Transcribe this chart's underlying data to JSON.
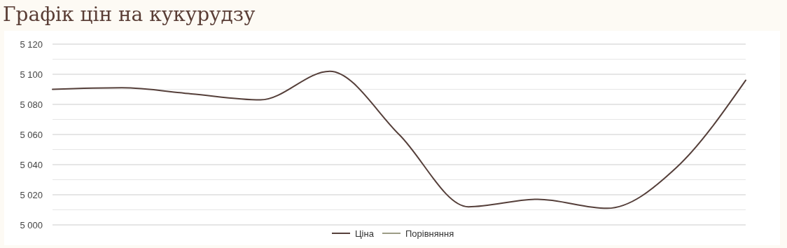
{
  "chart_data": {
    "type": "line",
    "title": "Графік цін на кукурудзу",
    "categories": [
      null,
      null,
      null,
      null,
      null,
      null,
      null,
      null,
      null,
      null,
      null
    ],
    "series": [
      {
        "name": "Ціна",
        "color": "#553f3a",
        "values": [
          5090,
          5091,
          5087,
          5083,
          5102,
          5060,
          5012,
          5017,
          5011,
          5038,
          5096
        ]
      },
      {
        "name": "Порівняння",
        "color": "#9c9c86",
        "values": [
          null,
          null,
          null,
          null,
          null,
          null,
          null,
          null,
          null,
          null,
          null
        ]
      }
    ],
    "ylim": [
      5000,
      5120
    ],
    "yticks": [
      {
        "value": 5000,
        "label": "5 000"
      },
      {
        "value": 5010,
        "label": null
      },
      {
        "value": 5020,
        "label": "5 020"
      },
      {
        "value": 5030,
        "label": null
      },
      {
        "value": 5040,
        "label": "5 040"
      },
      {
        "value": 5050,
        "label": null
      },
      {
        "value": 5060,
        "label": "5 060"
      },
      {
        "value": 5070,
        "label": null
      },
      {
        "value": 5080,
        "label": "5 080"
      },
      {
        "value": 5090,
        "label": null
      },
      {
        "value": 5100,
        "label": "5 100"
      },
      {
        "value": 5110,
        "label": null
      },
      {
        "value": 5120,
        "label": "5 120"
      }
    ],
    "grid": "y",
    "legend": "bottom",
    "marker": "none",
    "line_style": "solid"
  }
}
